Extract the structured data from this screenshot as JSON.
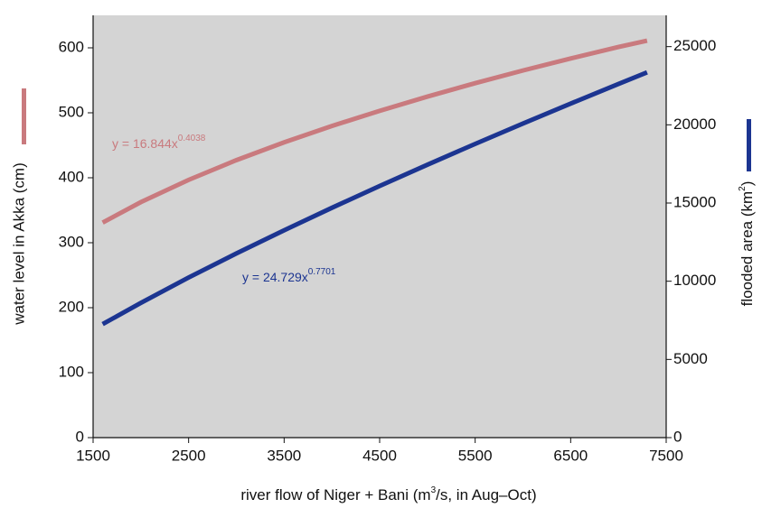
{
  "chart_data": {
    "type": "line",
    "xlabel": [
      "river flow of Niger + Bani (m",
      "3",
      "/s, in Aug–Oct)"
    ],
    "ylabel": "water level in Akka (cm)",
    "y2label": [
      "flooded area (km",
      "2",
      ")"
    ],
    "x": [
      1600,
      2000,
      2500,
      3000,
      3500,
      4000,
      4500,
      5000,
      5500,
      6000,
      6500,
      7000,
      7300
    ],
    "series": [
      {
        "name": "water level in Akka",
        "color": "#c97a7e",
        "axis": "y",
        "values": [
          331,
          362.5,
          396.7,
          427.1,
          454.5,
          479.7,
          503,
          524.9,
          545.6,
          565.1,
          583.6,
          601.3,
          611
        ]
      },
      {
        "name": "flooded area",
        "color": "#1c3591",
        "axis": "y2",
        "values": [
          7256,
          8616,
          10235,
          11774,
          13257,
          14694,
          16089,
          17449,
          18779,
          20080,
          21358,
          22613,
          23357
        ]
      }
    ],
    "annotations": [
      {
        "text": "y = 16.844x",
        "superscript": "0.4038",
        "color": "#c97a7e"
      },
      {
        "text": "y = 24.729x",
        "superscript": "0.7701",
        "color": "#1c3591"
      }
    ],
    "xlim": [
      1500,
      7500
    ],
    "xticks": [
      1500,
      2500,
      3500,
      4500,
      5500,
      6500,
      7500
    ],
    "ylim": [
      0,
      650
    ],
    "yticks": [
      0,
      100,
      200,
      300,
      400,
      500,
      600
    ],
    "y2lim": [
      0,
      27000
    ],
    "y2ticks": [
      0,
      5000,
      10000,
      15000,
      20000,
      25000
    ],
    "plot_background": "#d4d4d4"
  }
}
